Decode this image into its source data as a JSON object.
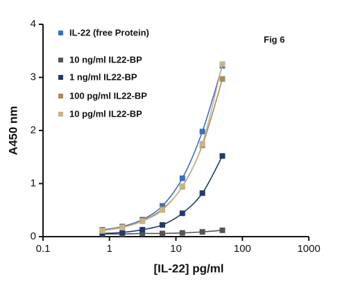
{
  "chart_data": {
    "type": "scatter",
    "x_label": "[IL-22] pg/ml",
    "y_label": "A450 nm",
    "annotation": "Fig 6",
    "x": [
      0.78,
      1.56,
      3.125,
      6.25,
      12.5,
      25,
      50
    ],
    "series": [
      {
        "name": "IL-22 (free Protein)",
        "color": "#3a6fc4",
        "values": [
          0.13,
          0.19,
          0.32,
          0.58,
          1.1,
          1.98,
          3.22
        ]
      },
      {
        "name": "10 ng/ml IL22-BP",
        "color": "#555555",
        "values": [
          0.05,
          0.05,
          0.06,
          0.06,
          0.07,
          0.09,
          0.12
        ]
      },
      {
        "name": "1 ng/ml IL22-BP",
        "color": "#1f3a6b",
        "values": [
          0.06,
          0.08,
          0.13,
          0.22,
          0.44,
          0.82,
          1.52
        ]
      },
      {
        "name": "100 pg/ml IL22-BP",
        "color": "#a88a5a",
        "values": [
          0.12,
          0.18,
          0.3,
          0.52,
          0.94,
          1.72,
          2.97
        ]
      },
      {
        "name": "10 pg/ml IL22-BP",
        "color": "#c8b48a",
        "values": [
          0.11,
          0.17,
          0.29,
          0.5,
          0.95,
          1.75,
          3.25
        ]
      }
    ],
    "xlim": [
      0.1,
      1000
    ],
    "xticks": [
      0.1,
      1,
      10,
      100,
      1000
    ],
    "xscale": "log",
    "ylim": [
      0,
      4
    ],
    "yticks": [
      0,
      1,
      2,
      3,
      4
    ],
    "grid": false,
    "legend": "upper left"
  }
}
